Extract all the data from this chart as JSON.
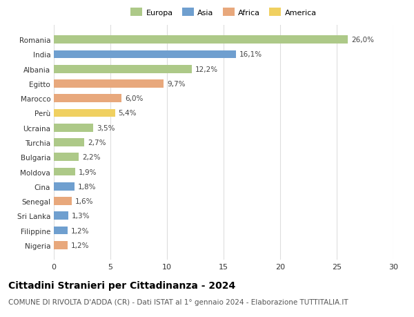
{
  "countries": [
    "Romania",
    "India",
    "Albania",
    "Egitto",
    "Marocco",
    "Perù",
    "Ucraina",
    "Turchia",
    "Bulgaria",
    "Moldova",
    "Cina",
    "Senegal",
    "Sri Lanka",
    "Filippine",
    "Nigeria"
  ],
  "values": [
    26.0,
    16.1,
    12.2,
    9.7,
    6.0,
    5.4,
    3.5,
    2.7,
    2.2,
    1.9,
    1.8,
    1.6,
    1.3,
    1.2,
    1.2
  ],
  "labels": [
    "26,0%",
    "16,1%",
    "12,2%",
    "9,7%",
    "6,0%",
    "5,4%",
    "3,5%",
    "2,7%",
    "2,2%",
    "1,9%",
    "1,8%",
    "1,6%",
    "1,3%",
    "1,2%",
    "1,2%"
  ],
  "colors": [
    "#adc988",
    "#6f9fcf",
    "#adc988",
    "#e8a87c",
    "#e8a87c",
    "#f0d060",
    "#adc988",
    "#adc988",
    "#adc988",
    "#adc988",
    "#6f9fcf",
    "#e8a87c",
    "#6f9fcf",
    "#6f9fcf",
    "#e8a87c"
  ],
  "legend_labels": [
    "Europa",
    "Asia",
    "Africa",
    "America"
  ],
  "legend_colors": [
    "#adc988",
    "#6f9fcf",
    "#e8a87c",
    "#f0d060"
  ],
  "title": "Cittadini Stranieri per Cittadinanza - 2024",
  "subtitle": "COMUNE DI RIVOLTA D'ADDA (CR) - Dati ISTAT al 1° gennaio 2024 - Elaborazione TUTTITALIA.IT",
  "xlim": [
    0,
    30
  ],
  "xticks": [
    0,
    5,
    10,
    15,
    20,
    25,
    30
  ],
  "background_color": "#ffffff",
  "grid_color": "#dddddd",
  "title_fontsize": 10,
  "subtitle_fontsize": 7.5,
  "label_fontsize": 7.5,
  "tick_fontsize": 8,
  "bar_height": 0.55
}
